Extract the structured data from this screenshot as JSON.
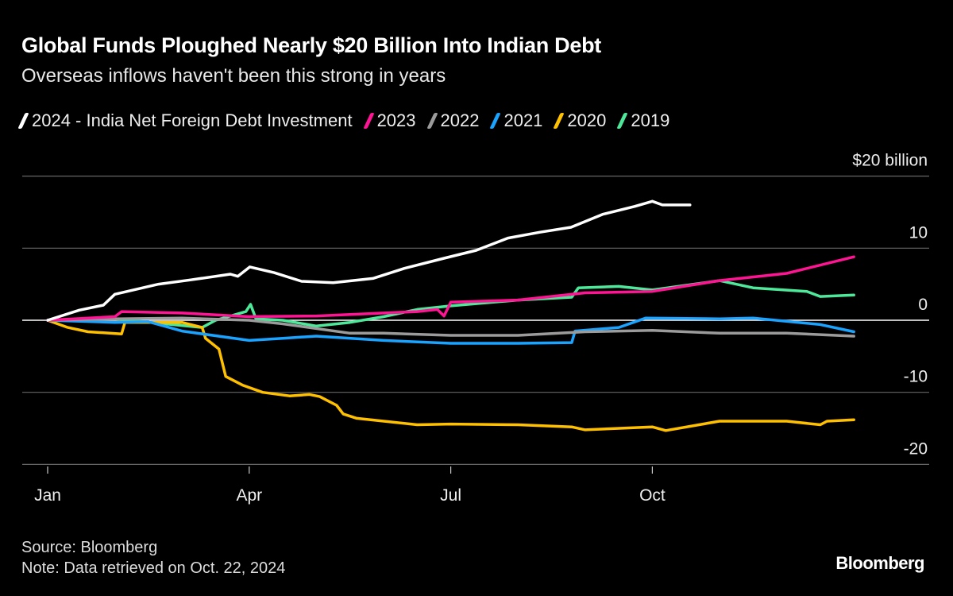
{
  "title": "Global Funds Ploughed Nearly $20 Billion Into Indian Debt",
  "subtitle": "Overseas inflows haven't been this strong in years",
  "source": "Source: Bloomberg",
  "note": "Note: Data retrieved on Oct. 22, 2024",
  "brand": "Bloomberg",
  "chart_data": {
    "type": "line",
    "unit_label": "$20 billion",
    "ylim": [
      -20,
      20
    ],
    "yticks": [
      {
        "v": 20,
        "label": "$20 billion"
      },
      {
        "v": 10,
        "label": "10"
      },
      {
        "v": 0,
        "label": "0"
      },
      {
        "v": -10,
        "label": "-10"
      },
      {
        "v": -20,
        "label": "-20"
      }
    ],
    "xticks": [
      {
        "m": 0,
        "label": "Jan"
      },
      {
        "m": 3,
        "label": "Apr"
      },
      {
        "m": 6,
        "label": "Jul"
      },
      {
        "m": 9,
        "label": "Oct"
      }
    ],
    "xlim_months": [
      0,
      12
    ],
    "grid": true,
    "legend_placement": "top",
    "series": [
      {
        "name": "2019",
        "color": "#4ee89a",
        "points": [
          [
            0,
            0
          ],
          [
            1,
            0.2
          ],
          [
            2.3,
            -1
          ],
          [
            2.5,
            0
          ],
          [
            2.95,
            1.2
          ],
          [
            3.02,
            2.2
          ],
          [
            3.1,
            0.2
          ],
          [
            3.5,
            0
          ],
          [
            4,
            -0.8
          ],
          [
            4.5,
            -0.3
          ],
          [
            5,
            0.5
          ],
          [
            5.5,
            1.5
          ],
          [
            6,
            2
          ],
          [
            7,
            2.8
          ],
          [
            7.8,
            3.2
          ],
          [
            7.9,
            4.5
          ],
          [
            8.5,
            4.7
          ],
          [
            9,
            4.2
          ],
          [
            10,
            5.5
          ],
          [
            10.5,
            4.5
          ],
          [
            11.3,
            4
          ],
          [
            11.5,
            3.3
          ],
          [
            12,
            3.5
          ]
        ]
      },
      {
        "name": "2020",
        "color": "#ffc000",
        "points": [
          [
            0,
            0
          ],
          [
            0.3,
            -1
          ],
          [
            0.6,
            -1.6
          ],
          [
            1.1,
            -1.9
          ],
          [
            1.15,
            -0.3
          ],
          [
            2,
            -0.3
          ],
          [
            2.3,
            -1
          ],
          [
            2.35,
            -2.5
          ],
          [
            2.55,
            -4
          ],
          [
            2.65,
            -7.8
          ],
          [
            2.9,
            -9
          ],
          [
            3.2,
            -10
          ],
          [
            3.6,
            -10.5
          ],
          [
            3.9,
            -10.3
          ],
          [
            4.05,
            -10.6
          ],
          [
            4.3,
            -11.8
          ],
          [
            4.4,
            -13
          ],
          [
            4.6,
            -13.6
          ],
          [
            5.5,
            -14.5
          ],
          [
            6,
            -14.4
          ],
          [
            7,
            -14.5
          ],
          [
            7.8,
            -14.8
          ],
          [
            8,
            -15.2
          ],
          [
            9,
            -14.8
          ],
          [
            9.2,
            -15.3
          ],
          [
            10,
            -14
          ],
          [
            11,
            -14
          ],
          [
            11.5,
            -14.5
          ],
          [
            11.6,
            -14
          ],
          [
            12,
            -13.8
          ]
        ]
      },
      {
        "name": "2021",
        "color": "#1aa3ff",
        "points": [
          [
            0,
            0
          ],
          [
            1,
            -0.3
          ],
          [
            1.5,
            -0.2
          ],
          [
            2,
            -1.5
          ],
          [
            3,
            -2.8
          ],
          [
            3.5,
            -2.5
          ],
          [
            4,
            -2.2
          ],
          [
            5,
            -2.8
          ],
          [
            6,
            -3.2
          ],
          [
            7,
            -3.2
          ],
          [
            7.8,
            -3.1
          ],
          [
            7.85,
            -1.5
          ],
          [
            8.5,
            -1
          ],
          [
            8.9,
            0.3
          ],
          [
            10,
            0.2
          ],
          [
            10.5,
            0.3
          ],
          [
            11.5,
            -0.6
          ],
          [
            12,
            -1.6
          ]
        ]
      },
      {
        "name": "2022",
        "color": "#9b9b9b",
        "points": [
          [
            0,
            0
          ],
          [
            1,
            0.2
          ],
          [
            2,
            0.3
          ],
          [
            3,
            0
          ],
          [
            3.5,
            -0.5
          ],
          [
            4.5,
            -1.8
          ],
          [
            5,
            -1.8
          ],
          [
            6,
            -2.1
          ],
          [
            7,
            -2.1
          ],
          [
            8,
            -1.6
          ],
          [
            9,
            -1.4
          ],
          [
            10,
            -1.8
          ],
          [
            11,
            -1.8
          ],
          [
            11.5,
            -2
          ],
          [
            12,
            -2.2
          ]
        ]
      },
      {
        "name": "2023",
        "color": "#ff1493",
        "points": [
          [
            0,
            0
          ],
          [
            1,
            0.5
          ],
          [
            1.1,
            1.2
          ],
          [
            2,
            1
          ],
          [
            3,
            0.5
          ],
          [
            4,
            0.6
          ],
          [
            5.5,
            1.2
          ],
          [
            5.8,
            1.5
          ],
          [
            5.9,
            0.6
          ],
          [
            6,
            2.5
          ],
          [
            7,
            2.8
          ],
          [
            8,
            3.8
          ],
          [
            9,
            4
          ],
          [
            10,
            5.5
          ],
          [
            11,
            6.5
          ],
          [
            12,
            8.8
          ]
        ]
      },
      {
        "name": "2024 - India Net Foreign Debt Investment",
        "color": "#ffffff",
        "points": [
          [
            0,
            0
          ],
          [
            0.47,
            1.4
          ],
          [
            0.83,
            2.1
          ],
          [
            1,
            3.6
          ],
          [
            1.65,
            5
          ],
          [
            2.13,
            5.6
          ],
          [
            2.72,
            6.4
          ],
          [
            2.83,
            6.1
          ],
          [
            3.01,
            7.4
          ],
          [
            3.37,
            6.6
          ],
          [
            3.78,
            5.4
          ],
          [
            4.25,
            5.2
          ],
          [
            4.84,
            5.8
          ],
          [
            5.31,
            7.2
          ],
          [
            5.9,
            8.6
          ],
          [
            6.38,
            9.7
          ],
          [
            6.85,
            11.4
          ],
          [
            7.32,
            12.2
          ],
          [
            7.79,
            12.9
          ],
          [
            8.26,
            14.7
          ],
          [
            8.74,
            15.8
          ],
          [
            9,
            16.5
          ],
          [
            9.15,
            16
          ],
          [
            9.56,
            16
          ]
        ]
      }
    ]
  }
}
